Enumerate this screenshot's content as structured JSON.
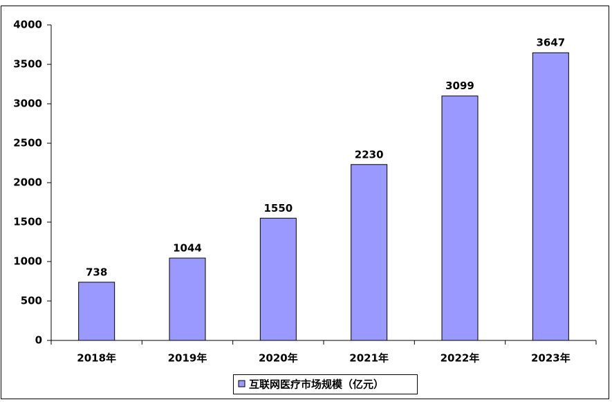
{
  "chart_data": {
    "type": "bar",
    "categories": [
      "2018年",
      "2019年",
      "2020年",
      "2021年",
      "2022年",
      "2023年"
    ],
    "series": [
      {
        "name": "互联网医疗市场规模（亿元）",
        "color": "#9999ff",
        "values": [
          738,
          1044,
          1550,
          2230,
          3099,
          3647
        ]
      }
    ],
    "ylim": [
      0,
      4000
    ],
    "yticks": [
      0,
      500,
      1000,
      1500,
      2000,
      2500,
      3000,
      3500,
      4000
    ],
    "grid": false,
    "legend": "bottom"
  }
}
